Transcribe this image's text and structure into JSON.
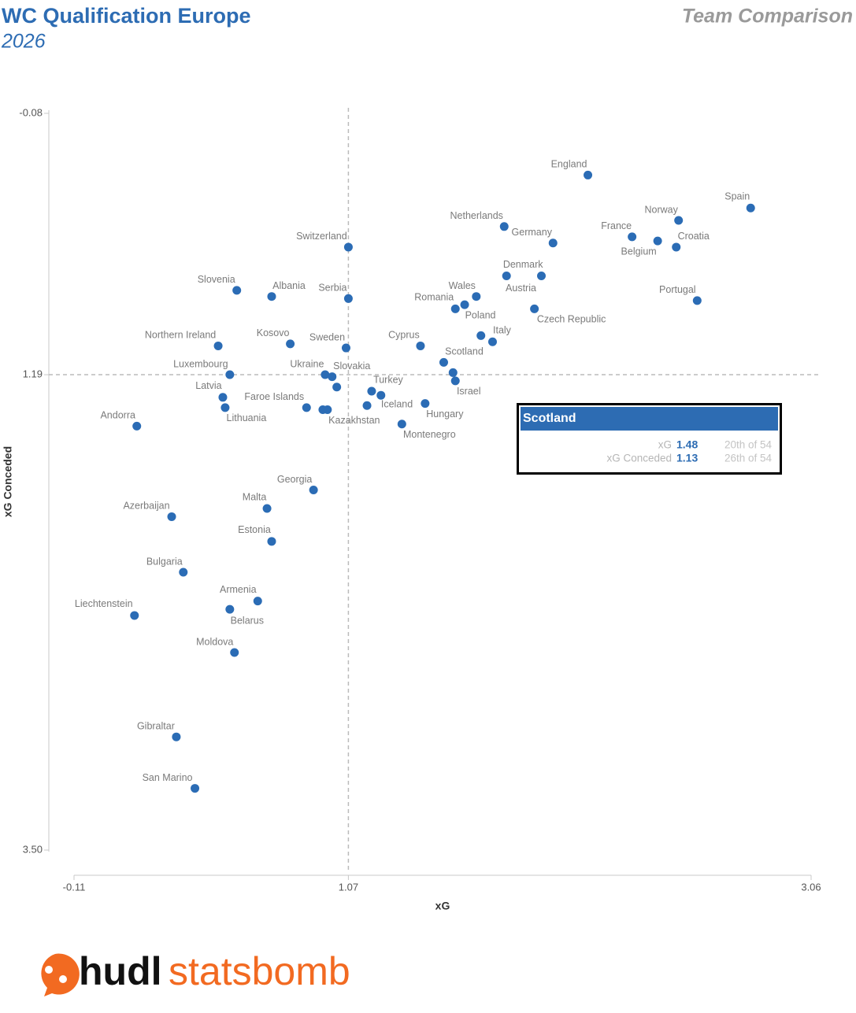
{
  "chart_data": {
    "type": "scatter",
    "title": "WC Qualification Europe",
    "subtitle": "2026",
    "view_title": "Team Comparison",
    "x_label": "xG",
    "y_label": "xG Conceded",
    "color": "#2b6cb5",
    "xlim": [
      -0.11,
      3.06
    ],
    "ylim": [
      -0.08,
      3.5
    ],
    "y_inverted": true,
    "xticks": [
      -0.11,
      1.07,
      3.06
    ],
    "yticks": [
      -0.08,
      1.19,
      {
        "value": 3.5,
        "label": "3.50"
      }
    ],
    "reference_lines": {
      "x": 1.07,
      "y": 1.19
    },
    "labels": [
      "England",
      "Spain",
      "Norway",
      "France",
      "Belgium",
      "Croatia",
      "Netherlands",
      "Germany",
      "Switzerland",
      "Denmark",
      "Austria",
      "Portugal",
      "Czech Republic",
      "Slovenia",
      "Albania",
      "Serbia",
      "Wales",
      "Poland",
      "Romania",
      null,
      "Italy",
      "Northern Ireland",
      "Kosovo",
      "Sweden",
      "Cyprus",
      "Scotland",
      null,
      "Israel",
      "Luxembourg",
      "Ukraine",
      "Slovakia",
      null,
      "Latvia",
      "Lithuania",
      "Faroe Islands",
      null,
      "Kazakhstan",
      "Turkey",
      null,
      "Iceland",
      "Hungary",
      "Montenegro",
      "Andorra",
      "Georgia",
      "Malta",
      "Azerbaijan",
      "Estonia",
      "Bulgaria",
      "Armenia",
      "Belarus",
      "Liechtenstein",
      "Moldova",
      "Gibraltar",
      "San Marino"
    ],
    "x": [
      2.1,
      2.8,
      2.49,
      2.29,
      2.4,
      2.48,
      1.74,
      1.95,
      1.07,
      1.75,
      1.9,
      2.57,
      1.87,
      0.59,
      0.74,
      1.07,
      1.62,
      1.57,
      1.53,
      1.64,
      1.69,
      0.51,
      0.82,
      1.06,
      1.38,
      1.48,
      1.52,
      1.53,
      0.56,
      0.97,
      1.0,
      1.02,
      0.53,
      0.54,
      0.89,
      0.96,
      0.98,
      1.17,
      1.21,
      1.15,
      1.4,
      1.3,
      0.16,
      0.92,
      0.72,
      0.31,
      0.74,
      0.36,
      0.68,
      0.56,
      0.15,
      0.58,
      0.33,
      0.41
    ],
    "values": [
      0.22,
      0.38,
      0.44,
      0.52,
      0.54,
      0.57,
      0.47,
      0.55,
      0.57,
      0.71,
      0.71,
      0.83,
      0.87,
      0.78,
      0.81,
      0.82,
      0.81,
      0.85,
      0.87,
      1.0,
      1.03,
      1.05,
      1.04,
      1.06,
      1.05,
      1.13,
      1.18,
      1.22,
      1.19,
      1.19,
      1.2,
      1.25,
      1.3,
      1.35,
      1.35,
      1.36,
      1.36,
      1.27,
      1.29,
      1.34,
      1.33,
      1.43,
      1.44,
      1.75,
      1.84,
      1.88,
      2.0,
      2.15,
      2.29,
      2.33,
      2.36,
      2.54,
      2.95,
      3.2
    ],
    "tooltip": {
      "title": "Scotland",
      "rows": [
        {
          "label": "xG",
          "value": 1.48,
          "rank": "20th of 54"
        },
        {
          "label": "xG Conceded",
          "value": 1.13,
          "rank": "26th of 54"
        }
      ]
    }
  },
  "logo": {
    "first": "hudl",
    "second": "statsbomb"
  }
}
